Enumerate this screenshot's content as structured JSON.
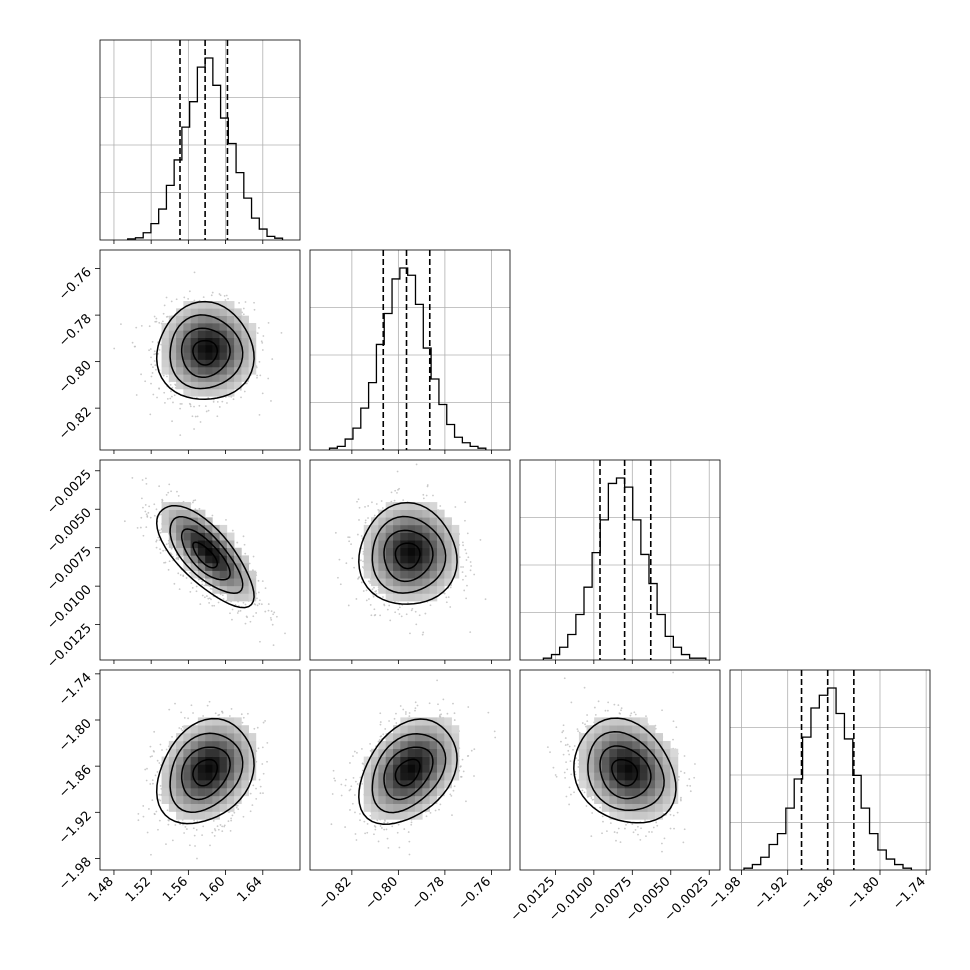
{
  "chart_data": {
    "type": "corner",
    "title": "",
    "parameters": [
      {
        "range": [
          1.465,
          1.68
        ],
        "ticks": [
          "1.48",
          "1.52",
          "1.56",
          "1.60",
          "1.64"
        ],
        "tick_values": [
          1.48,
          1.52,
          1.56,
          1.6,
          1.64
        ],
        "mean": 1.578,
        "std": 0.026,
        "quantiles": [
          1.551,
          1.578,
          1.602
        ]
      },
      {
        "range": [
          -0.838,
          -0.752
        ],
        "ticks": [
          "−0.76",
          "−0.78",
          "−0.80",
          "−0.82"
        ],
        "tick_values": [
          -0.76,
          -0.78,
          -0.8,
          -0.82
        ],
        "xticks": [
          "−0.82",
          "−0.80",
          "−0.78",
          "−0.76"
        ],
        "xtick_values": [
          -0.82,
          -0.8,
          -0.78,
          -0.76
        ],
        "mean": -0.796,
        "std": 0.0105,
        "quantiles": [
          -0.8065,
          -0.7965,
          -0.7865
        ]
      },
      {
        "range": [
          -0.0148,
          -0.0018
        ],
        "ticks": [
          "−0.0025",
          "−0.0050",
          "−0.0075",
          "−0.0100",
          "−0.0125"
        ],
        "tick_values": [
          -0.0025,
          -0.005,
          -0.0075,
          -0.01,
          -0.0125
        ],
        "xticks": [
          "−0.0125",
          "−0.0100",
          "−0.0075",
          "−0.0050",
          "−0.0025"
        ],
        "xtick_values": [
          -0.0125,
          -0.01,
          -0.0075,
          -0.005,
          -0.0025
        ],
        "mean": -0.008,
        "std": 0.00165,
        "quantiles": [
          -0.0096,
          -0.008,
          -0.0063
        ]
      },
      {
        "range": [
          -1.995,
          -1.735
        ],
        "ticks": [
          "−1.74",
          "−1.80",
          "−1.86",
          "−1.92",
          "−1.98"
        ],
        "tick_values": [
          -1.74,
          -1.8,
          -1.86,
          -1.92,
          -1.98
        ],
        "xticks": [
          "−1.98",
          "−1.92",
          "−1.86",
          "−1.80",
          "−1.74"
        ],
        "xtick_values": [
          -1.98,
          -1.92,
          -1.86,
          -1.8,
          -1.74
        ],
        "mean": -1.868,
        "std": 0.034,
        "quantiles": [
          -1.902,
          -1.868,
          -1.834
        ]
      }
    ],
    "correlations": [
      [
        1,
        0,
        -0.72,
        0.25
      ],
      [
        0,
        1,
        0,
        0.35
      ],
      [
        -0.72,
        0,
        1,
        -0.2
      ],
      [
        0.25,
        0.35,
        -0.2,
        1
      ]
    ],
    "histograms": [
      [
        0.006,
        0.012,
        0.04,
        0.09,
        0.17,
        0.3,
        0.44,
        0.62,
        0.76,
        0.95,
        1.0,
        0.85,
        0.67,
        0.53,
        0.37,
        0.23,
        0.12,
        0.06,
        0.02,
        0.01
      ],
      [
        0.01,
        0.02,
        0.06,
        0.12,
        0.23,
        0.37,
        0.58,
        0.75,
        0.94,
        1.0,
        0.96,
        0.8,
        0.56,
        0.39,
        0.25,
        0.14,
        0.07,
        0.04,
        0.02,
        0.01
      ],
      [
        0.01,
        0.03,
        0.07,
        0.14,
        0.25,
        0.4,
        0.59,
        0.77,
        0.97,
        1.0,
        0.95,
        0.77,
        0.58,
        0.42,
        0.25,
        0.13,
        0.07,
        0.03,
        0.01,
        0.01
      ],
      [
        0.01,
        0.03,
        0.07,
        0.14,
        0.2,
        0.34,
        0.5,
        0.73,
        0.89,
        0.96,
        1.0,
        0.86,
        0.72,
        0.52,
        0.34,
        0.2,
        0.11,
        0.06,
        0.03,
        0.01
      ]
    ],
    "contour_levels_sigma": [
      0.5,
      1.0,
      1.5,
      2.0
    ],
    "grid": true,
    "colors": {
      "line": "#000000",
      "grid": "#b0b0b0",
      "points": "#bdbdbd"
    }
  }
}
